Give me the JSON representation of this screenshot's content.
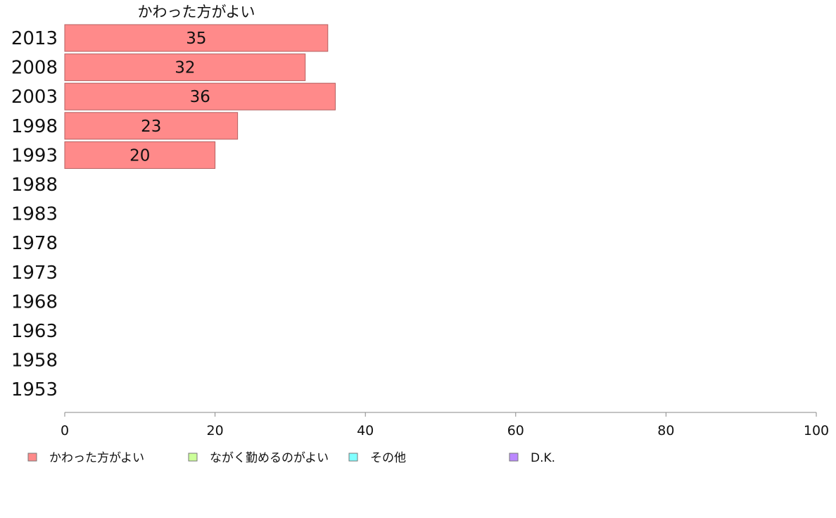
{
  "chart_data": {
    "type": "bar",
    "orientation": "horizontal",
    "title": "かわった方がよい",
    "categories": [
      "2013",
      "2008",
      "2003",
      "1998",
      "1993",
      "1988",
      "1983",
      "1978",
      "1973",
      "1968",
      "1963",
      "1958",
      "1953"
    ],
    "series": [
      {
        "name": "かわった方がよい",
        "color": "#ff8a8a",
        "values": [
          35,
          32,
          36,
          23,
          20,
          null,
          null,
          null,
          null,
          null,
          null,
          null,
          null
        ]
      }
    ],
    "legend": [
      {
        "name": "かわった方がよい",
        "color": "#ff8a8a"
      },
      {
        "name": "ながく勤めるのがよい",
        "color": "#ccff99"
      },
      {
        "name": "その他",
        "color": "#80ffff"
      },
      {
        "name": "D.K.",
        "color": "#bb88ff"
      }
    ],
    "xlim": [
      0,
      100
    ],
    "xticks": [
      0,
      20,
      40,
      60,
      80,
      100
    ],
    "grid": false,
    "legend_position": "bottom"
  }
}
